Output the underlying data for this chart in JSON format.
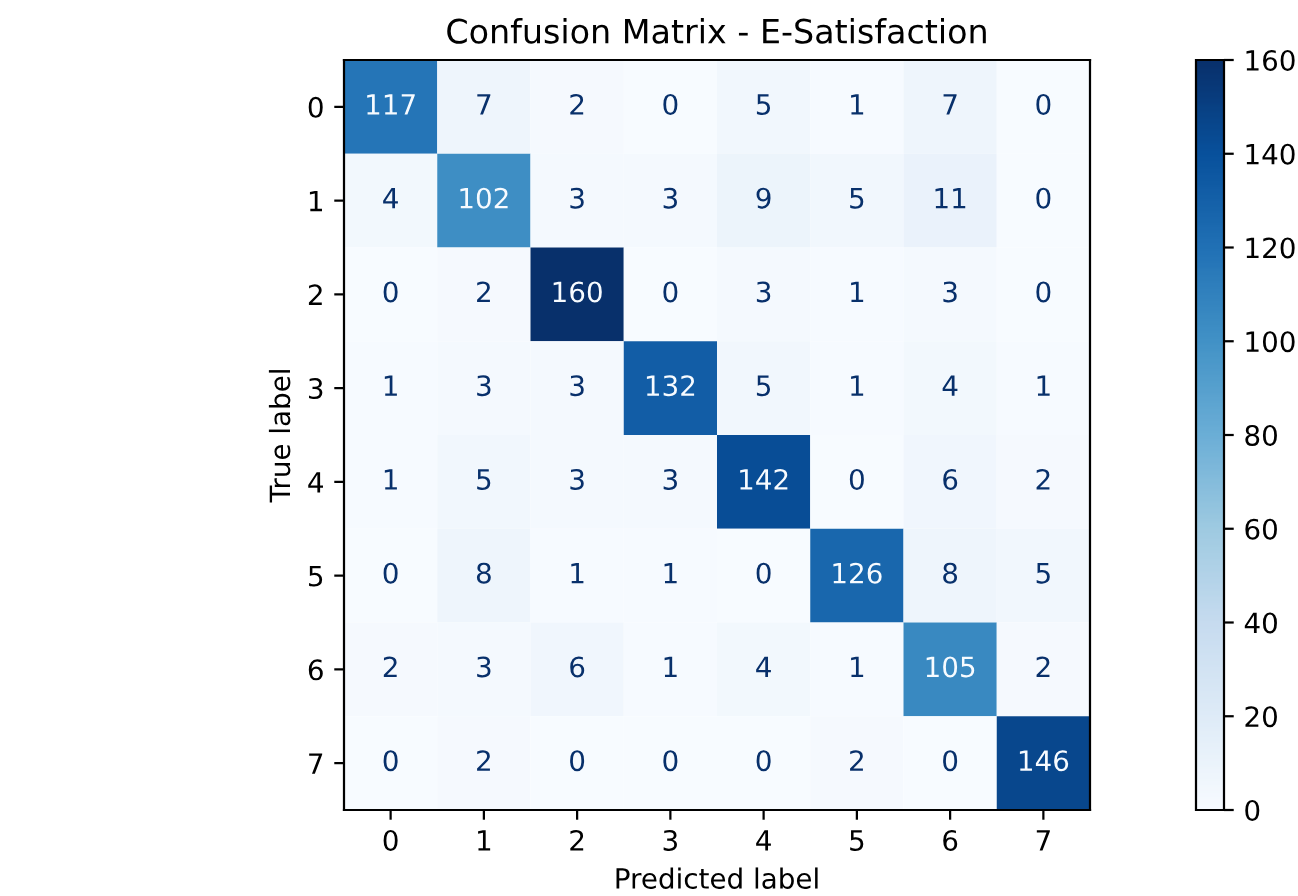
{
  "chart_data": {
    "type": "heatmap",
    "title": "Confusion Matrix - E-Satisfaction",
    "xlabel": "Predicted label",
    "ylabel": "True label",
    "categories": [
      "0",
      "1",
      "2",
      "3",
      "4",
      "5",
      "6",
      "7"
    ],
    "y_categories": [
      "0",
      "1",
      "2",
      "3",
      "4",
      "5",
      "6",
      "7"
    ],
    "cells": [
      [
        117,
        7,
        2,
        0,
        5,
        1,
        7,
        0
      ],
      [
        4,
        102,
        3,
        3,
        9,
        5,
        11,
        0
      ],
      [
        0,
        2,
        160,
        0,
        3,
        1,
        3,
        0
      ],
      [
        1,
        3,
        3,
        132,
        5,
        1,
        4,
        1
      ],
      [
        1,
        5,
        3,
        3,
        142,
        0,
        6,
        2
      ],
      [
        0,
        8,
        1,
        1,
        0,
        126,
        8,
        5
      ],
      [
        2,
        3,
        6,
        1,
        4,
        1,
        105,
        2
      ],
      [
        0,
        2,
        0,
        0,
        0,
        2,
        0,
        146
      ]
    ],
    "data_labels": true,
    "clim": [
      0,
      160
    ],
    "cticks": [
      0,
      20,
      40,
      60,
      80,
      100,
      120,
      140,
      160
    ],
    "grid": false
  }
}
